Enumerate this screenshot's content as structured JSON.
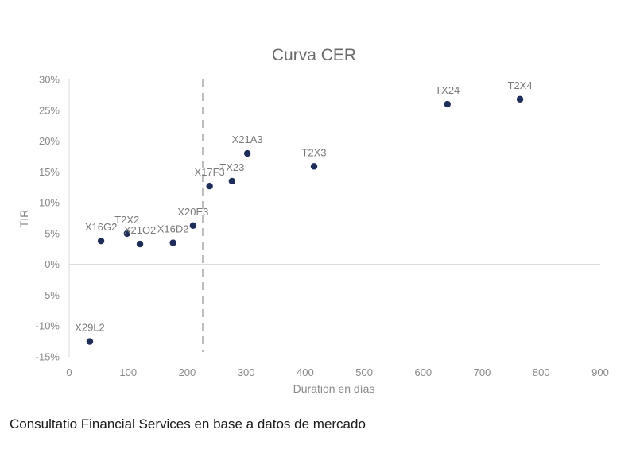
{
  "chart_data": {
    "type": "scatter",
    "title": "Curva CER",
    "xlabel": "Duration en días",
    "ylabel": "TIR",
    "xlim": [
      0,
      900
    ],
    "ylim": [
      -15,
      30
    ],
    "x_ticks": [
      0,
      100,
      200,
      300,
      400,
      500,
      600,
      700,
      800,
      900
    ],
    "y_ticks": [
      30,
      25,
      20,
      15,
      10,
      5,
      0,
      -5,
      -10,
      -15
    ],
    "y_tick_labels": [
      "30%",
      "25%",
      "20%",
      "15%",
      "10%",
      "5%",
      "0%",
      "-5%",
      "-10%",
      "-15%"
    ],
    "reference_line_x": 227,
    "marker_color": "#1f2d5a",
    "points": [
      {
        "label": "X29L2",
        "x": 35,
        "y": -12.5
      },
      {
        "label": "X16G2",
        "x": 54,
        "y": 3.8
      },
      {
        "label": "T2X2",
        "x": 98,
        "y": 5.0
      },
      {
        "label": "X21O2",
        "x": 120,
        "y": 3.3
      },
      {
        "label": "X16D2",
        "x": 176,
        "y": 3.5
      },
      {
        "label": "X20E3",
        "x": 210,
        "y": 6.3
      },
      {
        "label": "X17F3",
        "x": 238,
        "y": 12.7
      },
      {
        "label": "TX23",
        "x": 276,
        "y": 13.5
      },
      {
        "label": "X21A3",
        "x": 302,
        "y": 18.0
      },
      {
        "label": "T2X3",
        "x": 415,
        "y": 15.9
      },
      {
        "label": "TX24",
        "x": 641,
        "y": 26.0
      },
      {
        "label": "T2X4",
        "x": 764,
        "y": 26.8
      }
    ]
  },
  "footer": {
    "source_text": "Consultatio Financial Services en base a datos de mercado"
  }
}
